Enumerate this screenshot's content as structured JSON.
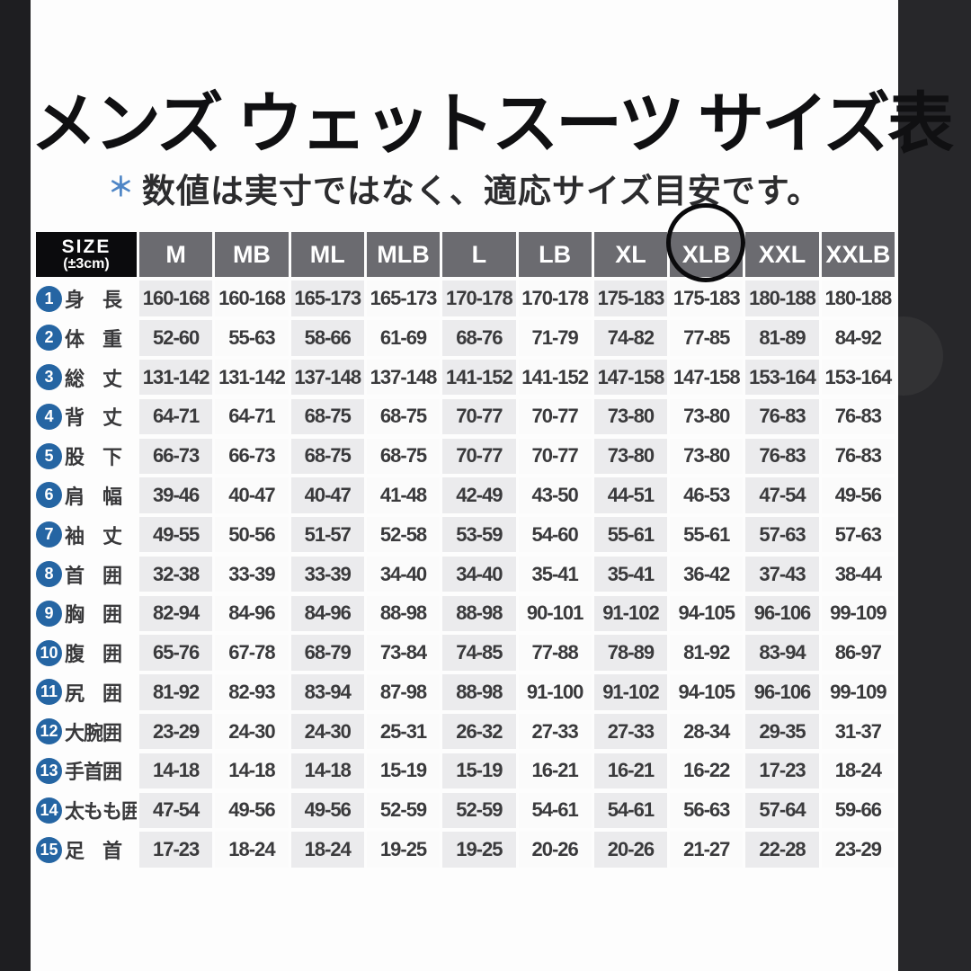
{
  "chart_data": {
    "type": "table",
    "title": "メンズ ウェットスーツ サイズ表",
    "note": {
      "asterisk": "＊",
      "text": "数値は実寸ではなく、適応サイズ目安です。"
    },
    "corner": {
      "line1": "SIZE",
      "line2": "(±3cm)"
    },
    "columns": [
      "M",
      "MB",
      "ML",
      "MLB",
      "L",
      "LB",
      "XL",
      "XLB",
      "XXL",
      "XXLB"
    ],
    "annotation": {
      "circled_column": "XLB"
    },
    "rows": [
      {
        "num": "1",
        "label": "身　長",
        "values": [
          "160-168",
          "160-168",
          "165-173",
          "165-173",
          "170-178",
          "170-178",
          "175-183",
          "175-183",
          "180-188",
          "180-188"
        ]
      },
      {
        "num": "2",
        "label": "体　重",
        "values": [
          "52-60",
          "55-63",
          "58-66",
          "61-69",
          "68-76",
          "71-79",
          "74-82",
          "77-85",
          "81-89",
          "84-92"
        ]
      },
      {
        "num": "3",
        "label": "総　丈",
        "values": [
          "131-142",
          "131-142",
          "137-148",
          "137-148",
          "141-152",
          "141-152",
          "147-158",
          "147-158",
          "153-164",
          "153-164"
        ]
      },
      {
        "num": "4",
        "label": "背　丈",
        "values": [
          "64-71",
          "64-71",
          "68-75",
          "68-75",
          "70-77",
          "70-77",
          "73-80",
          "73-80",
          "76-83",
          "76-83"
        ]
      },
      {
        "num": "5",
        "label": "股　下",
        "values": [
          "66-73",
          "66-73",
          "68-75",
          "68-75",
          "70-77",
          "70-77",
          "73-80",
          "73-80",
          "76-83",
          "76-83"
        ]
      },
      {
        "num": "6",
        "label": "肩　幅",
        "values": [
          "39-46",
          "40-47",
          "40-47",
          "41-48",
          "42-49",
          "43-50",
          "44-51",
          "46-53",
          "47-54",
          "49-56"
        ]
      },
      {
        "num": "7",
        "label": "袖　丈",
        "values": [
          "49-55",
          "50-56",
          "51-57",
          "52-58",
          "53-59",
          "54-60",
          "55-61",
          "55-61",
          "57-63",
          "57-63"
        ]
      },
      {
        "num": "8",
        "label": "首　囲",
        "values": [
          "32-38",
          "33-39",
          "33-39",
          "34-40",
          "34-40",
          "35-41",
          "35-41",
          "36-42",
          "37-43",
          "38-44"
        ]
      },
      {
        "num": "9",
        "label": "胸　囲",
        "values": [
          "82-94",
          "84-96",
          "84-96",
          "88-98",
          "88-98",
          "90-101",
          "91-102",
          "94-105",
          "96-106",
          "99-109"
        ]
      },
      {
        "num": "10",
        "label": "腹　囲",
        "values": [
          "65-76",
          "67-78",
          "68-79",
          "73-84",
          "74-85",
          "77-88",
          "78-89",
          "81-92",
          "83-94",
          "86-97"
        ]
      },
      {
        "num": "11",
        "label": "尻　囲",
        "values": [
          "81-92",
          "82-93",
          "83-94",
          "87-98",
          "88-98",
          "91-100",
          "91-102",
          "94-105",
          "96-106",
          "99-109"
        ]
      },
      {
        "num": "12",
        "label": "大腕囲",
        "values": [
          "23-29",
          "24-30",
          "24-30",
          "25-31",
          "26-32",
          "27-33",
          "27-33",
          "28-34",
          "29-35",
          "31-37"
        ]
      },
      {
        "num": "13",
        "label": "手首囲",
        "values": [
          "14-18",
          "14-18",
          "14-18",
          "15-19",
          "15-19",
          "16-21",
          "16-21",
          "16-22",
          "17-23",
          "18-24"
        ]
      },
      {
        "num": "14",
        "label": "太もも囲",
        "values": [
          "47-54",
          "49-56",
          "49-56",
          "52-59",
          "52-59",
          "54-61",
          "54-61",
          "56-63",
          "57-64",
          "59-66"
        ]
      },
      {
        "num": "15",
        "label": "足　首",
        "values": [
          "17-23",
          "18-24",
          "18-24",
          "19-25",
          "19-25",
          "20-26",
          "20-26",
          "21-27",
          "22-28",
          "23-29"
        ]
      }
    ],
    "colors": {
      "header_cell_bg": "#6b6b70",
      "corner_bg": "#0b0b0d",
      "odd_column_bg": "#ebebed",
      "even_column_bg": "#fbfbfb",
      "badge_blue": "#2565a3",
      "asterisk_blue": "#4f86c6",
      "dark_border": "#232326",
      "annotation_circle": "#0a0a0c"
    }
  }
}
